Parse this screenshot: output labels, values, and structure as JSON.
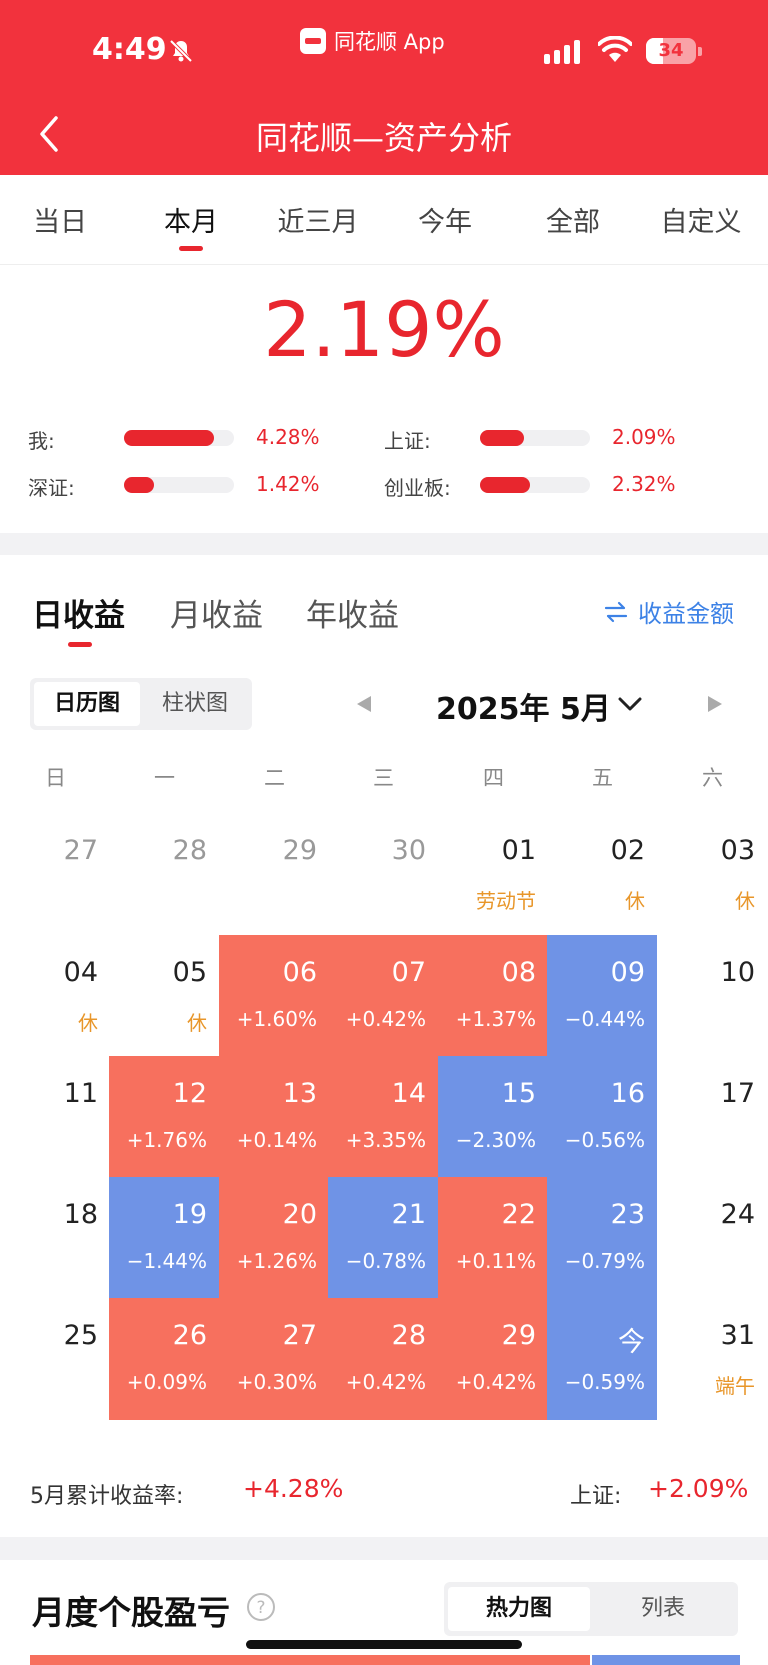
{
  "status_bar": {
    "time": "4:49",
    "app_label": "同花顺 App",
    "battery": "34",
    "battery_level": 0.34
  },
  "nav": {
    "title": "同花顺—资产分析"
  },
  "period_tabs": [
    "当日",
    "本月",
    "近三月",
    "今年",
    "全部",
    "自定义"
  ],
  "active_period": "本月",
  "summary": {
    "beat_pct": "2.19%",
    "comparisons": [
      {
        "label": "我:",
        "value": "4.28%",
        "fill": 0.82
      },
      {
        "label": "上证:",
        "value": "2.09%",
        "fill": 0.4
      },
      {
        "label": "深证:",
        "value": "1.42%",
        "fill": 0.27
      },
      {
        "label": "创业板:",
        "value": "2.32%",
        "fill": 0.45
      }
    ]
  },
  "returns_tabs": [
    "日收益",
    "月收益",
    "年收益"
  ],
  "swap_label": "收益金额",
  "view_toggle": [
    "日历图",
    "柱状图"
  ],
  "month_label": "2025年 5月",
  "weekdays": [
    "日",
    "一",
    "二",
    "三",
    "四",
    "五",
    "六"
  ],
  "calendar_rows": [
    [
      {
        "day": "27",
        "sub": "",
        "kind": "grey"
      },
      {
        "day": "28",
        "sub": "",
        "kind": "grey"
      },
      {
        "day": "29",
        "sub": "",
        "kind": "grey"
      },
      {
        "day": "30",
        "sub": "",
        "kind": "grey"
      },
      {
        "day": "01",
        "sub": "劳动节",
        "kind": "none"
      },
      {
        "day": "02",
        "sub": "休",
        "kind": "none"
      },
      {
        "day": "03",
        "sub": "休",
        "kind": "none"
      }
    ],
    [
      {
        "day": "04",
        "sub": "休",
        "kind": "none"
      },
      {
        "day": "05",
        "sub": "休",
        "kind": "none"
      },
      {
        "day": "06",
        "sub": "+1.60%",
        "kind": "up"
      },
      {
        "day": "07",
        "sub": "+0.42%",
        "kind": "up"
      },
      {
        "day": "08",
        "sub": "+1.37%",
        "kind": "up"
      },
      {
        "day": "09",
        "sub": "−0.44%",
        "kind": "down"
      },
      {
        "day": "10",
        "sub": "",
        "kind": "none"
      }
    ],
    [
      {
        "day": "11",
        "sub": "",
        "kind": "none"
      },
      {
        "day": "12",
        "sub": "+1.76%",
        "kind": "up"
      },
      {
        "day": "13",
        "sub": "+0.14%",
        "kind": "up"
      },
      {
        "day": "14",
        "sub": "+3.35%",
        "kind": "up"
      },
      {
        "day": "15",
        "sub": "−2.30%",
        "kind": "down"
      },
      {
        "day": "16",
        "sub": "−0.56%",
        "kind": "down"
      },
      {
        "day": "17",
        "sub": "",
        "kind": "none"
      }
    ],
    [
      {
        "day": "18",
        "sub": "",
        "kind": "none"
      },
      {
        "day": "19",
        "sub": "−1.44%",
        "kind": "down"
      },
      {
        "day": "20",
        "sub": "+1.26%",
        "kind": "up"
      },
      {
        "day": "21",
        "sub": "−0.78%",
        "kind": "down"
      },
      {
        "day": "22",
        "sub": "+0.11%",
        "kind": "up"
      },
      {
        "day": "23",
        "sub": "−0.79%",
        "kind": "down"
      },
      {
        "day": "24",
        "sub": "",
        "kind": "none"
      }
    ],
    [
      {
        "day": "25",
        "sub": "",
        "kind": "none"
      },
      {
        "day": "26",
        "sub": "+0.09%",
        "kind": "up"
      },
      {
        "day": "27",
        "sub": "+0.30%",
        "kind": "up"
      },
      {
        "day": "28",
        "sub": "+0.42%",
        "kind": "up"
      },
      {
        "day": "29",
        "sub": "+0.42%",
        "kind": "up"
      },
      {
        "day": "今",
        "sub": "−0.59%",
        "kind": "down"
      },
      {
        "day": "31",
        "sub": "端午",
        "kind": "none"
      }
    ]
  ],
  "month_summary": {
    "label": "5月累计收益率:",
    "value": "+4.28%",
    "index_label": "上证:",
    "index_value": "+2.09%"
  },
  "stock_section": {
    "title": "月度个股盈亏",
    "toggle": [
      "热力图",
      "列表"
    ]
  },
  "colors": {
    "brand_red": "#f2323d",
    "up": "#f7705e",
    "down": "#6f93e6",
    "holiday": "#e8962a",
    "link_blue": "#3d82e6"
  }
}
